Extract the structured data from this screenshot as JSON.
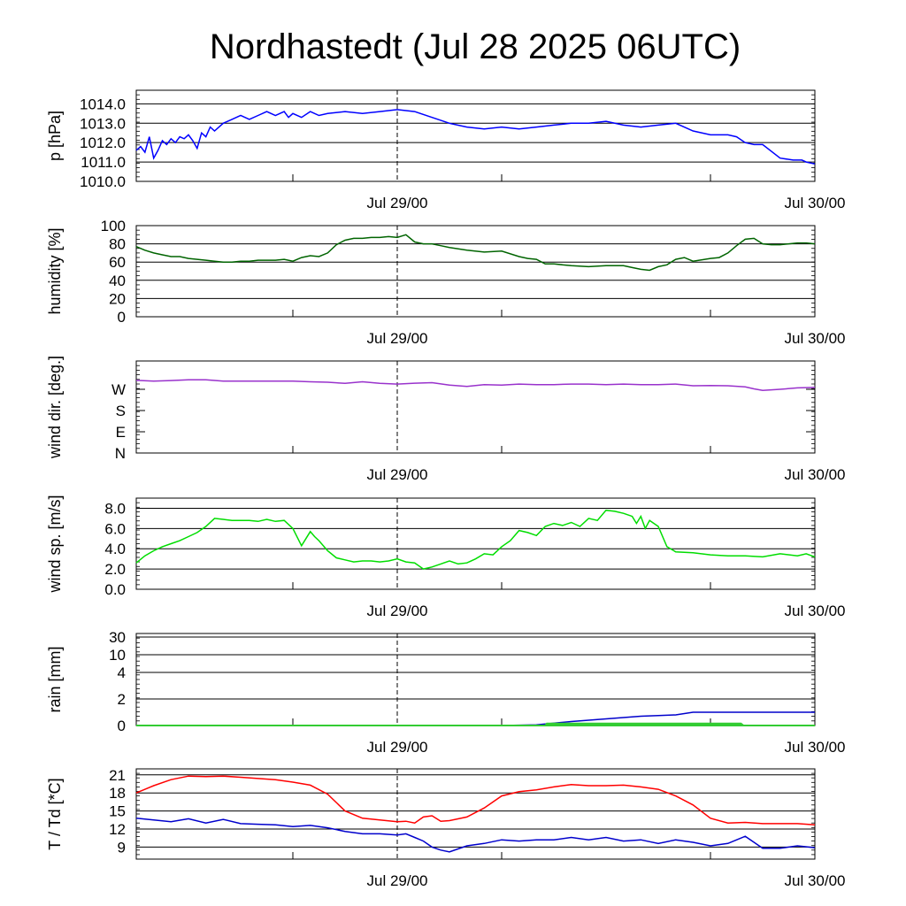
{
  "title": "Nordhastedt (Jul 28 2025 06UTC)",
  "chart_data": [
    {
      "type": "line",
      "ylabel": "p [hPa]",
      "ylim": [
        1010.0,
        1014.7
      ],
      "yticks": [
        {
          "value": 1010.0,
          "label": "1010.0"
        },
        {
          "value": 1011.0,
          "label": "1011.0"
        },
        {
          "value": 1012.0,
          "label": "1012.0"
        },
        {
          "value": 1013.0,
          "label": "1013.0"
        },
        {
          "value": 1014.0,
          "label": "1014.0"
        }
      ],
      "xtick_labels": [
        "Jul 29/00",
        "Jul 30/00"
      ],
      "series": [
        {
          "color": "#0000ff",
          "x": [
            0,
            0.5,
            1,
            1.5,
            2,
            2.5,
            3,
            3.5,
            4,
            4.5,
            5,
            5.5,
            6,
            6.5,
            7,
            7.5,
            8,
            8.5,
            9,
            10,
            11,
            12,
            13,
            14,
            15,
            16,
            17,
            17.5,
            18,
            19,
            20,
            21,
            22,
            24,
            26,
            28,
            30,
            32,
            34,
            36,
            38,
            40,
            42,
            44,
            46,
            48,
            50,
            52,
            54,
            56,
            58,
            60,
            62,
            64,
            66,
            68,
            69,
            70,
            71,
            72,
            74,
            75.5,
            76.5,
            77,
            78
          ],
          "y": [
            1011.6,
            1011.8,
            1011.5,
            1012.3,
            1011.2,
            1011.6,
            1012.1,
            1011.9,
            1012.2,
            1012.0,
            1012.3,
            1012.2,
            1012.4,
            1012.1,
            1011.7,
            1012.5,
            1012.3,
            1012.8,
            1012.6,
            1013.0,
            1013.2,
            1013.4,
            1013.2,
            1013.4,
            1013.6,
            1013.4,
            1013.6,
            1013.3,
            1013.5,
            1013.3,
            1013.6,
            1013.4,
            1013.5,
            1013.6,
            1013.5,
            1013.6,
            1013.7,
            1013.6,
            1013.3,
            1013.0,
            1012.8,
            1012.7,
            1012.8,
            1012.7,
            1012.8,
            1012.9,
            1013.0,
            1013.0,
            1013.1,
            1012.9,
            1012.8,
            1012.9,
            1013.0,
            1012.6,
            1012.4,
            1012.4,
            1012.3,
            1012.0,
            1011.9,
            1011.9,
            1011.2,
            1011.1,
            1011.1,
            1011.0,
            1010.9
          ]
        }
      ]
    },
    {
      "type": "line",
      "ylabel": "humidity [%]",
      "ylim": [
        0,
        100
      ],
      "yticks": [
        {
          "value": 0,
          "label": "0"
        },
        {
          "value": 20,
          "label": "20"
        },
        {
          "value": 40,
          "label": "40"
        },
        {
          "value": 60,
          "label": "60"
        },
        {
          "value": 80,
          "label": "80"
        },
        {
          "value": 100,
          "label": "100"
        }
      ],
      "xtick_labels": [
        "Jul 29/00",
        "Jul 30/00"
      ],
      "series": [
        {
          "color": "#006400",
          "x": [
            0,
            1,
            2,
            3,
            4,
            5,
            6,
            7,
            8,
            9,
            10,
            11,
            12,
            13,
            14,
            15,
            16,
            17,
            18,
            19,
            20,
            21,
            22,
            23,
            24,
            25,
            26,
            27,
            28,
            29,
            30,
            31,
            32,
            33,
            34,
            35,
            36,
            38,
            40,
            42,
            44,
            45,
            46,
            47,
            48,
            50,
            52,
            54,
            56,
            57,
            58,
            59,
            60,
            61,
            62,
            63,
            64,
            66,
            67,
            68,
            69,
            70,
            71,
            72,
            73,
            74,
            75,
            76,
            77,
            78
          ],
          "y": [
            77,
            73,
            70,
            68,
            66,
            66,
            64,
            63,
            62,
            61,
            60,
            60,
            61,
            61,
            62,
            62,
            62,
            63,
            61,
            65,
            67,
            66,
            70,
            79,
            84,
            86,
            86,
            87,
            87,
            88,
            87,
            90,
            82,
            80,
            80,
            78,
            76,
            73,
            71,
            72,
            66,
            64,
            63,
            58,
            58,
            56,
            55,
            56,
            56,
            54,
            52,
            51,
            55,
            57,
            63,
            65,
            61,
            64,
            65,
            70,
            78,
            85,
            86,
            80,
            79,
            79,
            80,
            81,
            81,
            80
          ]
        }
      ]
    },
    {
      "type": "line",
      "ylabel": "wind dir. [deg.]",
      "ylim": [
        0,
        390
      ],
      "yticks": [
        {
          "value": 0,
          "label": "N"
        },
        {
          "value": 90,
          "label": "E"
        },
        {
          "value": 180,
          "label": "S"
        },
        {
          "value": 270,
          "label": "W"
        }
      ],
      "xtick_labels": [
        "Jul 29/00",
        "Jul 30/00"
      ],
      "series": [
        {
          "color": "#9932cc",
          "x": [
            0,
            2,
            4,
            6,
            8,
            10,
            12,
            14,
            16,
            18,
            20,
            22,
            24,
            26,
            28,
            30,
            32,
            34,
            36,
            38,
            40,
            42,
            44,
            46,
            48,
            50,
            52,
            54,
            56,
            58,
            60,
            62,
            64,
            66,
            68,
            70,
            71,
            72,
            74,
            76,
            78
          ],
          "y": [
            308,
            305,
            307,
            310,
            310,
            305,
            305,
            305,
            305,
            305,
            302,
            300,
            295,
            302,
            295,
            292,
            296,
            298,
            288,
            282,
            290,
            288,
            292,
            290,
            290,
            292,
            292,
            290,
            292,
            290,
            290,
            292,
            285,
            286,
            285,
            280,
            272,
            265,
            270,
            276,
            278
          ]
        }
      ]
    },
    {
      "type": "line",
      "ylabel": "wind sp. [m/s]",
      "ylim": [
        0,
        9
      ],
      "yticks": [
        {
          "value": 0.0,
          "label": "0.0"
        },
        {
          "value": 2.0,
          "label": "2.0"
        },
        {
          "value": 4.0,
          "label": "4.0"
        },
        {
          "value": 6.0,
          "label": "6.0"
        },
        {
          "value": 8.0,
          "label": "8.0"
        }
      ],
      "xtick_labels": [
        "Jul 29/00",
        "Jul 30/00"
      ],
      "series": [
        {
          "color": "#00dd00",
          "x": [
            0,
            1,
            2,
            3,
            4,
            5,
            6,
            7,
            8,
            9,
            10,
            11,
            12,
            13,
            14,
            15,
            16,
            17,
            18,
            19,
            20,
            20.5,
            21,
            22,
            23,
            24,
            25,
            26,
            27,
            28,
            29,
            30,
            31,
            32,
            33,
            34,
            35,
            36,
            37,
            38,
            39,
            40,
            41,
            42,
            43,
            44,
            45,
            46,
            47,
            48,
            49,
            50,
            51,
            52,
            53,
            54,
            55,
            56,
            57,
            57.5,
            58,
            58.5,
            59,
            60,
            61,
            62,
            64,
            66,
            68,
            70,
            72,
            74,
            76,
            77,
            78
          ],
          "y": [
            2.6,
            3.3,
            3.8,
            4.2,
            4.5,
            4.8,
            5.2,
            5.6,
            6.2,
            7.0,
            6.9,
            6.8,
            6.8,
            6.8,
            6.7,
            6.9,
            6.7,
            6.8,
            6.0,
            4.3,
            5.7,
            5.2,
            4.8,
            3.8,
            3.1,
            2.9,
            2.7,
            2.8,
            2.8,
            2.7,
            2.8,
            3.0,
            2.7,
            2.6,
            2.0,
            2.2,
            2.5,
            2.8,
            2.5,
            2.6,
            3.0,
            3.5,
            3.4,
            4.2,
            4.8,
            5.8,
            5.6,
            5.3,
            6.2,
            6.5,
            6.3,
            6.6,
            6.2,
            7.0,
            6.8,
            7.8,
            7.7,
            7.5,
            7.2,
            6.5,
            7.2,
            6.0,
            6.8,
            6.2,
            4.2,
            3.7,
            3.6,
            3.4,
            3.3,
            3.3,
            3.2,
            3.5,
            3.3,
            3.5,
            3.2
          ]
        }
      ]
    },
    {
      "type": "area",
      "ylabel": "rain [mm]",
      "ylim": [
        0,
        30
      ],
      "scale": "nonlinear",
      "yticks": [
        {
          "value": 0,
          "label": "0"
        },
        {
          "value": 2,
          "label": "2"
        },
        {
          "value": 4,
          "label": "4"
        },
        {
          "value": 10,
          "label": "10"
        },
        {
          "value": 30,
          "label": "30"
        }
      ],
      "xtick_labels": [
        "Jul 29/00",
        "Jul 30/00"
      ],
      "series": [
        {
          "color": "#0000cc",
          "x": [
            0,
            42,
            46,
            50,
            54,
            57,
            58,
            60,
            62,
            64,
            66,
            68,
            70,
            72,
            74,
            76,
            78
          ],
          "y": [
            0,
            0,
            0.05,
            0.3,
            0.5,
            0.65,
            0.7,
            0.75,
            0.8,
            1.0,
            1.0,
            1.0,
            1.0,
            1.0,
            1.0,
            1.0,
            1.0
          ]
        },
        {
          "color": "#33cc33",
          "x": [
            0,
            47,
            47.2,
            69.5,
            69.8,
            78
          ],
          "y": [
            0,
            0,
            0.15,
            0.15,
            0,
            0
          ]
        }
      ]
    },
    {
      "type": "line",
      "ylabel": "T / Td [*C]",
      "ylim": [
        7,
        22
      ],
      "yticks": [
        {
          "value": 9,
          "label": "9"
        },
        {
          "value": 12,
          "label": "12"
        },
        {
          "value": 15,
          "label": "15"
        },
        {
          "value": 18,
          "label": "18"
        },
        {
          "value": 21,
          "label": "21"
        }
      ],
      "xtick_labels": [
        "Jul 29/00",
        "Jul 30/00"
      ],
      "series": [
        {
          "color": "#ff0000",
          "x": [
            0,
            2,
            4,
            6,
            8,
            10,
            12,
            14,
            16,
            18,
            20,
            22,
            24,
            26,
            28,
            30,
            31,
            32,
            33,
            34,
            35,
            36,
            38,
            40,
            42,
            44,
            46,
            48,
            50,
            52,
            54,
            56,
            58,
            60,
            62,
            64,
            66,
            68,
            70,
            72,
            74,
            76,
            78
          ],
          "y": [
            18.0,
            19.2,
            20.2,
            20.8,
            20.7,
            20.8,
            20.6,
            20.4,
            20.2,
            19.8,
            19.3,
            17.8,
            15.0,
            13.8,
            13.5,
            13.2,
            13.3,
            13.0,
            14.0,
            14.2,
            13.3,
            13.4,
            14.0,
            15.5,
            17.5,
            18.2,
            18.5,
            19.0,
            19.4,
            19.2,
            19.2,
            19.3,
            19.0,
            18.6,
            17.5,
            16.0,
            13.8,
            13.0,
            13.1,
            12.9,
            12.9,
            12.9,
            12.7
          ]
        },
        {
          "color": "#0000cc",
          "x": [
            0,
            2,
            4,
            6,
            8,
            10,
            12,
            14,
            16,
            18,
            20,
            22,
            24,
            26,
            28,
            30,
            31,
            32,
            33,
            34,
            35,
            36,
            38,
            40,
            42,
            44,
            46,
            48,
            50,
            52,
            54,
            56,
            58,
            60,
            62,
            64,
            66,
            68,
            70,
            71,
            72,
            74,
            76,
            78
          ],
          "y": [
            13.8,
            13.5,
            13.2,
            13.7,
            13.0,
            13.6,
            12.9,
            12.8,
            12.7,
            12.4,
            12.6,
            12.2,
            11.6,
            11.2,
            11.2,
            11.0,
            11.2,
            10.6,
            10.0,
            9.0,
            8.5,
            8.2,
            9.2,
            9.6,
            10.2,
            10.0,
            10.2,
            10.2,
            10.6,
            10.2,
            10.6,
            10.0,
            10.2,
            9.6,
            10.2,
            9.8,
            9.2,
            9.6,
            10.8,
            9.8,
            8.8,
            8.8,
            9.2,
            8.9
          ]
        }
      ]
    }
  ]
}
